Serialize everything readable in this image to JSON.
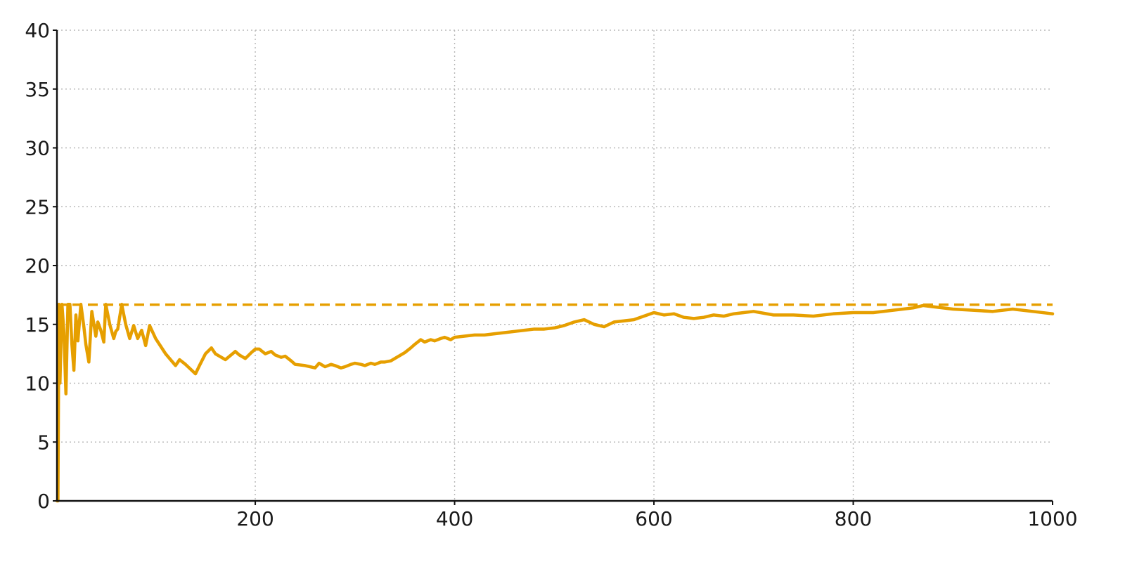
{
  "chart_data": {
    "type": "line",
    "title": "",
    "xlabel": "",
    "ylabel": "",
    "xlim": [
      1,
      1000
    ],
    "ylim": [
      0,
      40
    ],
    "x_ticks": [
      200,
      400,
      600,
      800,
      1000
    ],
    "y_ticks": [
      0,
      5,
      10,
      15,
      20,
      25,
      30,
      35,
      40
    ],
    "x_tick_labels": [
      "200",
      "400",
      "600",
      "800",
      "1000"
    ],
    "y_tick_labels": [
      "0",
      "5",
      "10",
      "15",
      "20",
      "25",
      "30",
      "35",
      "40"
    ],
    "grid": true,
    "legend": "none",
    "colors": {
      "series": "#E69F00",
      "axis": "#111111",
      "grid": "#b8b8b8"
    },
    "reference_line": {
      "y": 16.67,
      "style": "dashed"
    },
    "series": [
      {
        "x": [
          1,
          2,
          3,
          4,
          6,
          8,
          10,
          12,
          14,
          16,
          18,
          20,
          22,
          25,
          28,
          30,
          33,
          36,
          40,
          42,
          45,
          48,
          50,
          54,
          58,
          60,
          62,
          66,
          70,
          74,
          78,
          82,
          86,
          90,
          94,
          100,
          110,
          120,
          124,
          130,
          140,
          144,
          150,
          156,
          160,
          170,
          180,
          184,
          190,
          196,
          200,
          204,
          210,
          216,
          220,
          226,
          230,
          236,
          240,
          250,
          260,
          264,
          270,
          276,
          280,
          286,
          290,
          296,
          300,
          306,
          310,
          316,
          320,
          326,
          330,
          336,
          340,
          346,
          350,
          356,
          360,
          366,
          370,
          376,
          380,
          386,
          390,
          396,
          400,
          410,
          420,
          430,
          440,
          450,
          460,
          470,
          480,
          490,
          500,
          510,
          520,
          530,
          540,
          550,
          555,
          560,
          570,
          580,
          590,
          600,
          610,
          620,
          630,
          640,
          650,
          660,
          670,
          680,
          690,
          700,
          720,
          740,
          760,
          780,
          800,
          820,
          840,
          860,
          870,
          880,
          900,
          920,
          940,
          960,
          980,
          1000
        ],
        "values": [
          0,
          0,
          16.7,
          10.0,
          16.7,
          14.3,
          9.1,
          16.7,
          16.7,
          13.3,
          11.1,
          15.8,
          13.6,
          16.7,
          14.8,
          13.3,
          11.8,
          16.1,
          14.0,
          15.2,
          14.5,
          13.5,
          16.7,
          15.0,
          13.8,
          14.4,
          14.6,
          16.7,
          15.0,
          13.8,
          14.9,
          13.8,
          14.5,
          13.2,
          14.9,
          13.8,
          12.5,
          11.5,
          12.0,
          11.6,
          10.8,
          11.5,
          12.5,
          13.0,
          12.5,
          12.0,
          12.7,
          12.4,
          12.1,
          12.6,
          12.9,
          12.9,
          12.5,
          12.7,
          12.4,
          12.2,
          12.3,
          11.9,
          11.6,
          11.5,
          11.3,
          11.7,
          11.4,
          11.6,
          11.5,
          11.3,
          11.4,
          11.6,
          11.7,
          11.6,
          11.5,
          11.7,
          11.6,
          11.8,
          11.8,
          11.9,
          12.1,
          12.4,
          12.6,
          13.0,
          13.3,
          13.7,
          13.5,
          13.7,
          13.6,
          13.8,
          13.9,
          13.7,
          13.9,
          14.0,
          14.1,
          14.1,
          14.2,
          14.3,
          14.4,
          14.5,
          14.6,
          14.6,
          14.7,
          14.9,
          15.2,
          15.4,
          15.0,
          14.8,
          15.0,
          15.2,
          15.3,
          15.4,
          15.7,
          16.0,
          15.8,
          15.9,
          15.6,
          15.5,
          15.6,
          15.8,
          15.7,
          15.9,
          16.0,
          16.1,
          15.8,
          15.8,
          15.7,
          15.9,
          16.0,
          16.0,
          16.2,
          16.4,
          16.6,
          16.5,
          16.3,
          16.2,
          16.1,
          16.3,
          16.1,
          15.9
        ]
      }
    ]
  }
}
